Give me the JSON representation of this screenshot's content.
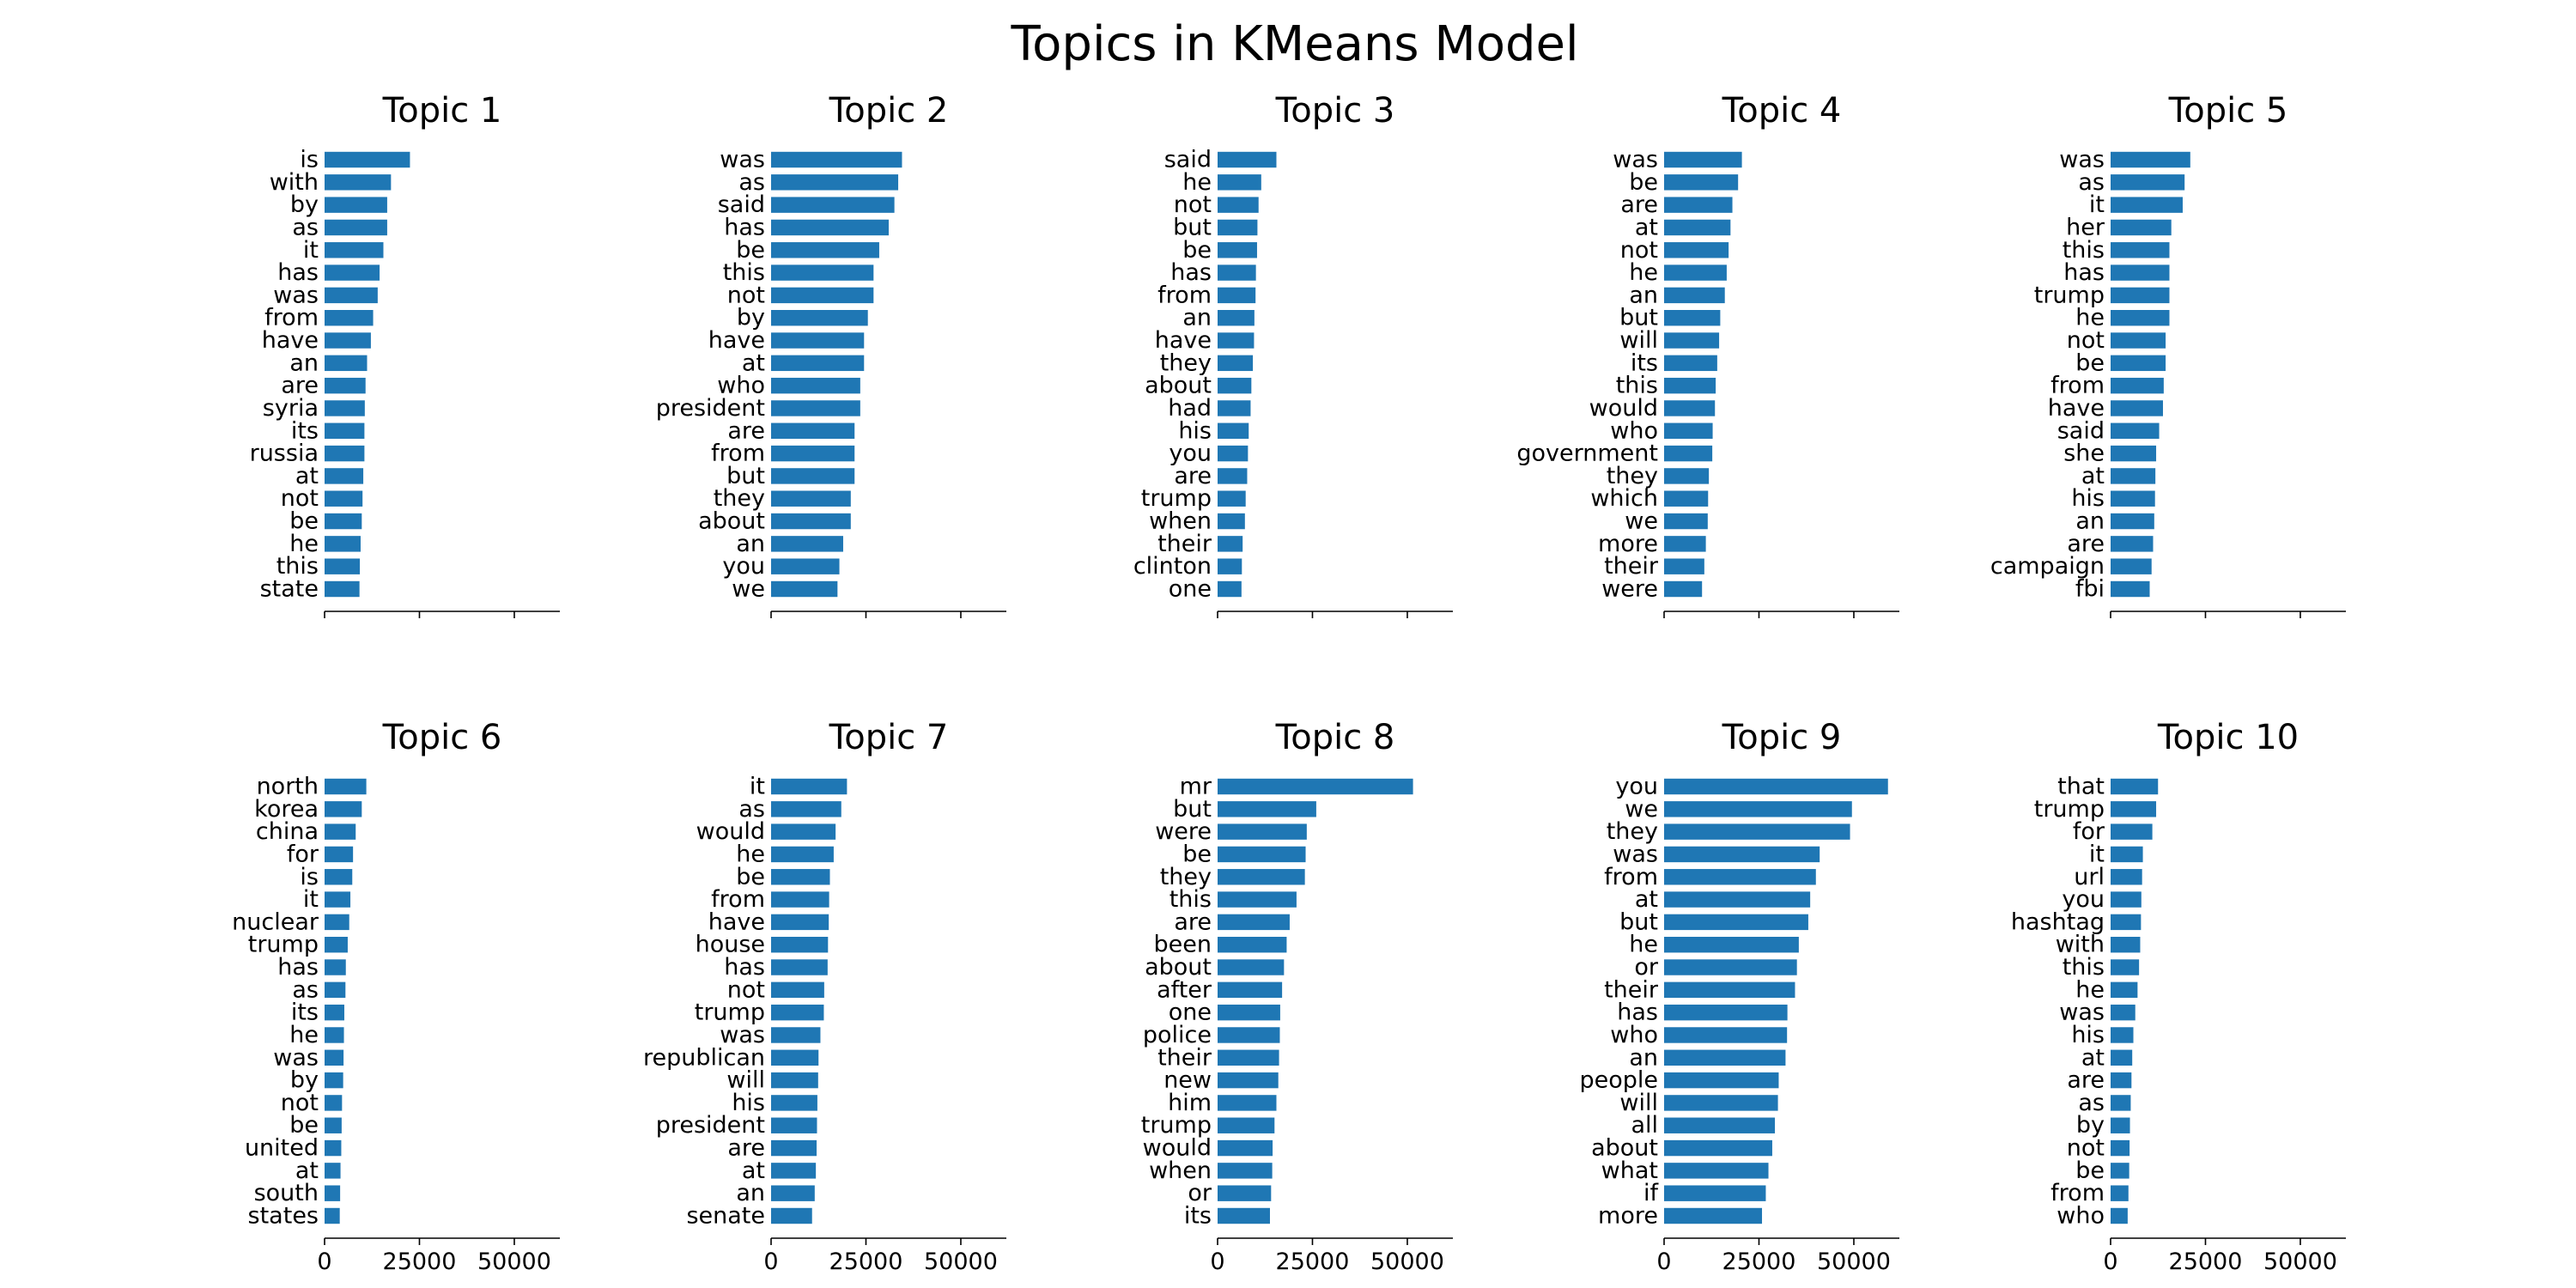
{
  "figure": {
    "title": "Topics in KMeans Model"
  },
  "style": {
    "bar_color": "#1f77b4",
    "axis_color": "#000000",
    "text_color": "#000000"
  },
  "chart_data": [
    {
      "type": "bar",
      "orientation": "horizontal",
      "title": "Topic 1",
      "xlim": [
        0,
        62000
      ],
      "xticks": [],
      "xticklabels": [],
      "categories": [
        "is",
        "with",
        "by",
        "as",
        "it",
        "has",
        "was",
        "from",
        "have",
        "an",
        "are",
        "syria",
        "its",
        "russia",
        "at",
        "not",
        "be",
        "he",
        "this",
        "state"
      ],
      "values": [
        22500,
        17500,
        16500,
        16500,
        15500,
        14500,
        14000,
        12800,
        12200,
        11200,
        10800,
        10600,
        10500,
        10500,
        10200,
        10000,
        9800,
        9500,
        9300,
        9200
      ]
    },
    {
      "type": "bar",
      "orientation": "horizontal",
      "title": "Topic 2",
      "xlim": [
        0,
        62000
      ],
      "xticks": [],
      "xticklabels": [],
      "categories": [
        "was",
        "as",
        "said",
        "has",
        "be",
        "this",
        "not",
        "by",
        "have",
        "at",
        "who",
        "president",
        "are",
        "from",
        "but",
        "they",
        "about",
        "an",
        "you",
        "we"
      ],
      "values": [
        34500,
        33500,
        32500,
        31000,
        28500,
        27000,
        27000,
        25500,
        24500,
        24500,
        23500,
        23500,
        22000,
        22000,
        22000,
        21000,
        21000,
        19000,
        18000,
        17500
      ]
    },
    {
      "type": "bar",
      "orientation": "horizontal",
      "title": "Topic 3",
      "xlim": [
        0,
        62000
      ],
      "xticks": [],
      "xticklabels": [],
      "categories": [
        "said",
        "he",
        "not",
        "but",
        "be",
        "has",
        "from",
        "an",
        "have",
        "they",
        "about",
        "had",
        "his",
        "you",
        "are",
        "trump",
        "when",
        "their",
        "clinton",
        "one"
      ],
      "values": [
        15500,
        11500,
        10800,
        10500,
        10400,
        10100,
        10000,
        9700,
        9600,
        9300,
        8900,
        8700,
        8200,
        8000,
        7800,
        7400,
        7200,
        6600,
        6400,
        6300
      ]
    },
    {
      "type": "bar",
      "orientation": "horizontal",
      "title": "Topic 4",
      "xlim": [
        0,
        62000
      ],
      "xticks": [],
      "xticklabels": [],
      "categories": [
        "was",
        "be",
        "are",
        "at",
        "not",
        "he",
        "an",
        "but",
        "will",
        "its",
        "this",
        "would",
        "who",
        "government",
        "they",
        "which",
        "we",
        "more",
        "their",
        "were"
      ],
      "values": [
        20500,
        19500,
        18000,
        17500,
        17000,
        16500,
        16000,
        14800,
        14500,
        14000,
        13600,
        13400,
        12800,
        12700,
        11800,
        11600,
        11500,
        11000,
        10600,
        10000
      ]
    },
    {
      "type": "bar",
      "orientation": "horizontal",
      "title": "Topic 5",
      "xlim": [
        0,
        62000
      ],
      "xticks": [],
      "xticklabels": [],
      "categories": [
        "was",
        "as",
        "it",
        "her",
        "this",
        "has",
        "trump",
        "he",
        "not",
        "be",
        "from",
        "have",
        "said",
        "she",
        "at",
        "his",
        "an",
        "are",
        "campaign",
        "fbi"
      ],
      "values": [
        21000,
        19500,
        19000,
        16000,
        15500,
        15500,
        15500,
        15500,
        14500,
        14500,
        14000,
        13800,
        12800,
        12000,
        11800,
        11700,
        11500,
        11200,
        10800,
        10300
      ]
    },
    {
      "type": "bar",
      "orientation": "horizontal",
      "title": "Topic 6",
      "xlim": [
        0,
        62000
      ],
      "xticks": [
        0,
        25000,
        50000
      ],
      "xticklabels": [
        "0",
        "25000",
        "50000"
      ],
      "categories": [
        "north",
        "korea",
        "china",
        "for",
        "is",
        "it",
        "nuclear",
        "trump",
        "has",
        "as",
        "its",
        "he",
        "was",
        "by",
        "not",
        "be",
        "united",
        "at",
        "south",
        "states"
      ],
      "values": [
        11000,
        9800,
        8200,
        7500,
        7300,
        6800,
        6500,
        6100,
        5600,
        5500,
        5200,
        5100,
        5000,
        4900,
        4600,
        4500,
        4400,
        4200,
        4100,
        4000
      ]
    },
    {
      "type": "bar",
      "orientation": "horizontal",
      "title": "Topic 7",
      "xlim": [
        0,
        62000
      ],
      "xticks": [
        0,
        25000,
        50000
      ],
      "xticklabels": [
        "0",
        "25000",
        "50000"
      ],
      "categories": [
        "it",
        "as",
        "would",
        "he",
        "be",
        "from",
        "have",
        "house",
        "has",
        "not",
        "trump",
        "was",
        "republican",
        "will",
        "his",
        "president",
        "are",
        "at",
        "an",
        "senate"
      ],
      "values": [
        20000,
        18500,
        17000,
        16500,
        15500,
        15300,
        15200,
        15000,
        14900,
        14000,
        13900,
        13000,
        12500,
        12400,
        12200,
        12100,
        12000,
        11800,
        11500,
        10800
      ]
    },
    {
      "type": "bar",
      "orientation": "horizontal",
      "title": "Topic 8",
      "xlim": [
        0,
        62000
      ],
      "xticks": [
        0,
        25000,
        50000
      ],
      "xticklabels": [
        "0",
        "25000",
        "50000"
      ],
      "categories": [
        "mr",
        "but",
        "were",
        "be",
        "they",
        "this",
        "are",
        "been",
        "about",
        "after",
        "one",
        "police",
        "their",
        "new",
        "him",
        "trump",
        "would",
        "when",
        "or",
        "its"
      ],
      "values": [
        51500,
        26000,
        23500,
        23200,
        23000,
        20800,
        19000,
        18200,
        17500,
        17000,
        16500,
        16400,
        16200,
        16000,
        15500,
        15000,
        14500,
        14400,
        14100,
        13800
      ]
    },
    {
      "type": "bar",
      "orientation": "horizontal",
      "title": "Topic 9",
      "xlim": [
        0,
        62000
      ],
      "xticks": [
        0,
        25000,
        50000
      ],
      "xticklabels": [
        "0",
        "25000",
        "50000"
      ],
      "categories": [
        "you",
        "we",
        "they",
        "was",
        "from",
        "at",
        "but",
        "he",
        "or",
        "their",
        "has",
        "who",
        "an",
        "people",
        "will",
        "all",
        "about",
        "what",
        "if",
        "more"
      ],
      "values": [
        59000,
        49500,
        49000,
        41000,
        40000,
        38500,
        38000,
        35500,
        35000,
        34500,
        32500,
        32400,
        32000,
        30200,
        30000,
        29200,
        28500,
        27500,
        26800,
        25800
      ]
    },
    {
      "type": "bar",
      "orientation": "horizontal",
      "title": "Topic 10",
      "xlim": [
        0,
        62000
      ],
      "xticks": [
        0,
        25000,
        50000
      ],
      "xticklabels": [
        "0",
        "25000",
        "50000"
      ],
      "categories": [
        "that",
        "trump",
        "for",
        "it",
        "url",
        "you",
        "hashtag",
        "with",
        "this",
        "he",
        "was",
        "his",
        "at",
        "are",
        "as",
        "by",
        "not",
        "be",
        "from",
        "who"
      ],
      "values": [
        12500,
        12000,
        11000,
        8500,
        8300,
        8100,
        8000,
        7800,
        7500,
        7100,
        6500,
        6000,
        5700,
        5500,
        5300,
        5100,
        5000,
        4900,
        4700,
        4500
      ]
    }
  ]
}
